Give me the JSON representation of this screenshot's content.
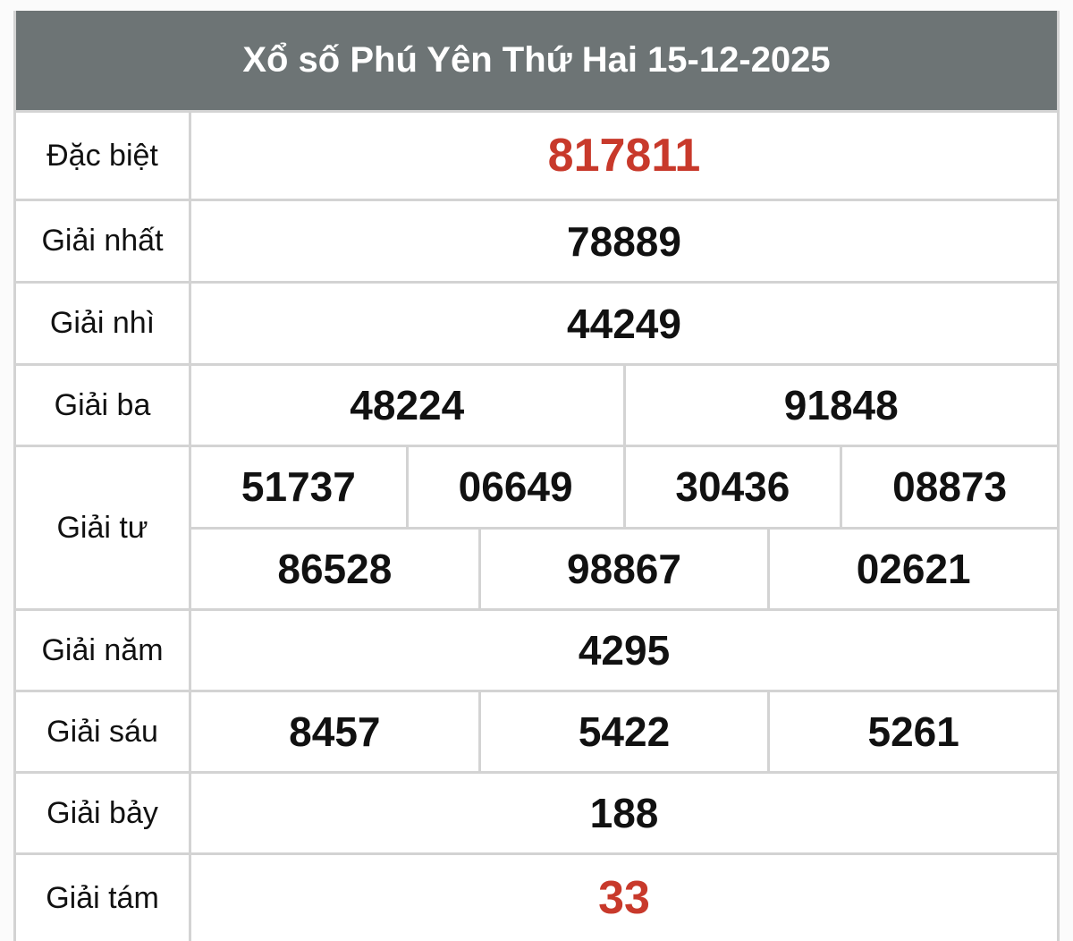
{
  "title": "Xổ số Phú Yên Thứ Hai 15-12-2025",
  "accent_color": "#c8392b",
  "header_color": "#6d7475",
  "prizes": [
    {
      "label": "Đặc biệt",
      "rows": [
        [
          "817811"
        ]
      ],
      "highlight": true
    },
    {
      "label": "Giải nhất",
      "rows": [
        [
          "78889"
        ]
      ]
    },
    {
      "label": "Giải nhì",
      "rows": [
        [
          "44249"
        ]
      ]
    },
    {
      "label": "Giải ba",
      "rows": [
        [
          "48224",
          "91848"
        ]
      ]
    },
    {
      "label": "Giải tư",
      "rows": [
        [
          "51737",
          "06649",
          "30436",
          "08873"
        ],
        [
          "86528",
          "98867",
          "02621"
        ]
      ]
    },
    {
      "label": "Giải năm",
      "rows": [
        [
          "4295"
        ]
      ]
    },
    {
      "label": "Giải sáu",
      "rows": [
        [
          "8457",
          "5422",
          "5261"
        ]
      ]
    },
    {
      "label": "Giải bảy",
      "rows": [
        [
          "188"
        ]
      ]
    },
    {
      "label": "Giải tám",
      "rows": [
        [
          "33"
        ]
      ],
      "highlight": true
    }
  ]
}
